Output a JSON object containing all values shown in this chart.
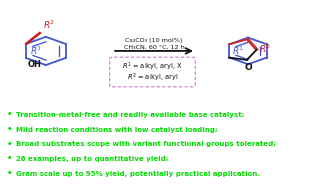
{
  "reaction_conditions_line1": "Cs₂CO₃ (10 mol%)",
  "reaction_conditions_line2": "CH₃CN, 60 °C, 12 h",
  "r_groups_line1": "R¹ = alkyl, aryl, X",
  "r_groups_line2": "R² = alkyl, aryl",
  "bullet_points": [
    "Transition-metal-free and readily available base catalyst;",
    "Mild reaction conditions with low catalyst loading;",
    "Broad substrates scope with variant functional groups tolerated;",
    "26 examples, up to quantitative yield;",
    "Gram scale up to 95% yield, potentially practical application."
  ],
  "bullet_color": "#00dd00",
  "bullet_fontsize": 5.0,
  "top_bg": "#ffffff",
  "bottom_bg": "#dce8f4",
  "border_color": "#cc77cc",
  "blue_color": "#4455cc",
  "red_color": "#cc2222",
  "black_color": "#111111"
}
